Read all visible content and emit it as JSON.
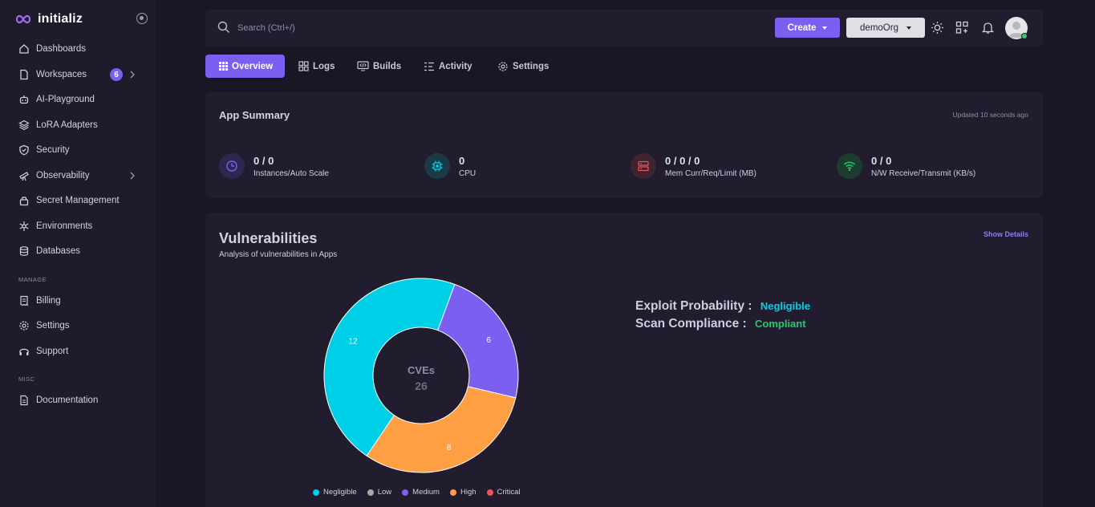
{
  "brand": {
    "name": "initializ"
  },
  "sidebar": {
    "items": [
      {
        "label": "Dashboards"
      },
      {
        "label": "Workspaces",
        "badge": "6"
      },
      {
        "label": "AI-Playground"
      },
      {
        "label": "LoRA Adapters"
      },
      {
        "label": "Security"
      },
      {
        "label": "Observability"
      },
      {
        "label": "Secret Management"
      },
      {
        "label": "Environments"
      },
      {
        "label": "Databases"
      }
    ],
    "manage_label": "MANAGE",
    "manage_items": [
      {
        "label": "Billing"
      },
      {
        "label": "Settings"
      },
      {
        "label": "Support"
      }
    ],
    "misc_label": "MISC",
    "misc_items": [
      {
        "label": "Documentation"
      }
    ]
  },
  "topbar": {
    "search_placeholder": "Search (Ctrl+/)",
    "create_label": "Create",
    "org_label": "demoOrg"
  },
  "tabs": [
    {
      "label": "Overview"
    },
    {
      "label": "Logs"
    },
    {
      "label": "Builds"
    },
    {
      "label": "Activity"
    },
    {
      "label": "Settings"
    }
  ],
  "summary": {
    "title": "App Summary",
    "updated": "Updated 10 seconds ago",
    "metrics": [
      {
        "value": "0 / 0",
        "label": "Instances/Auto Scale",
        "color": "#7b5ff0"
      },
      {
        "value": "0",
        "label": "CPU",
        "color": "#00cfe8"
      },
      {
        "value": "0 / 0 / 0",
        "label": "Mem Curr/Req/Limit (MB)",
        "color": "#ea5455"
      },
      {
        "value": "0 / 0",
        "label": "N/W Receive/Transmit (KB/s)",
        "color": "#28c76f"
      }
    ]
  },
  "vulnerabilities": {
    "title": "Vulnerabilities",
    "subtitle": "Analysis of vulnerabilities in Apps",
    "show_details": "Show Details",
    "center_label": "CVEs",
    "center_value": "26",
    "exploit_label": "Exploit Probability :",
    "exploit_value": "Negligible",
    "compliance_label": "Scan Compliance :",
    "compliance_value": "Compliant"
  },
  "chart_data": {
    "type": "pie",
    "title": "CVEs",
    "categories": [
      "Negligible",
      "Low",
      "Medium",
      "High",
      "Critical"
    ],
    "values": [
      12,
      0,
      6,
      8,
      0
    ],
    "colors": [
      "#00cfe8",
      "#a8a8a8",
      "#7b5ff0",
      "#ff9f43",
      "#ea5455"
    ],
    "total": 26,
    "legend": "bottom"
  }
}
